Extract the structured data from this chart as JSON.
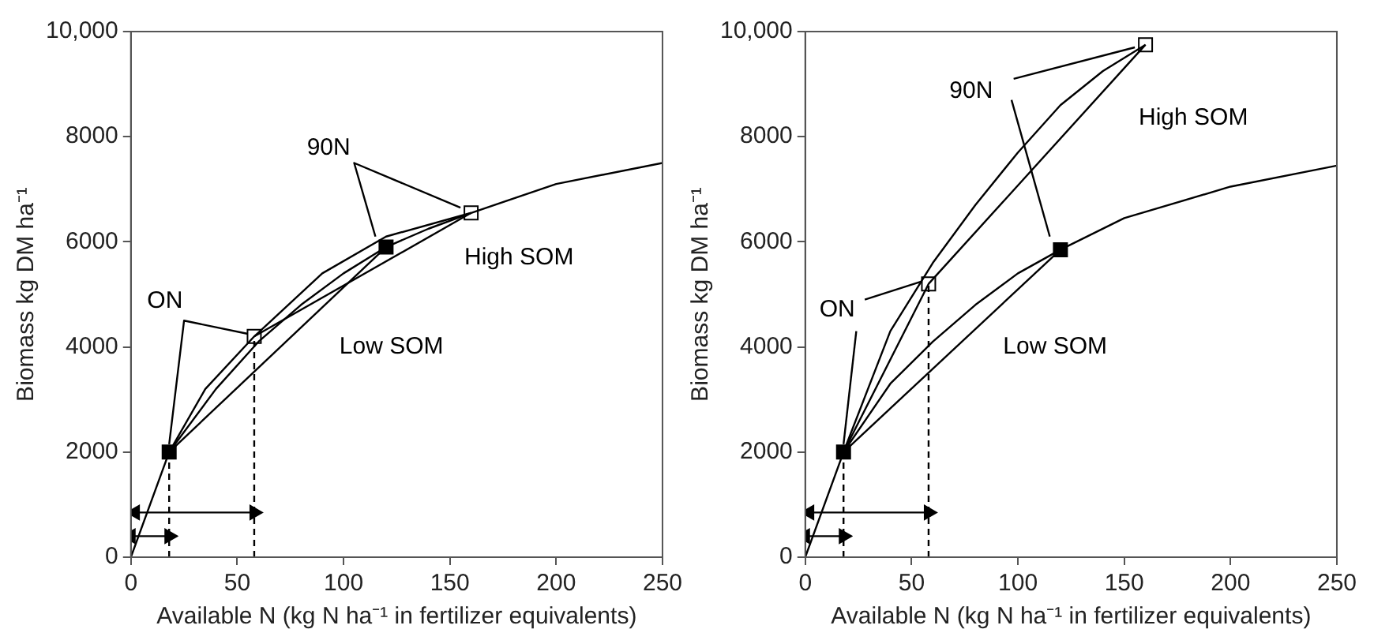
{
  "chart_data": [
    {
      "type": "line",
      "xlabel": "Available N (kg N ha⁻¹ in fertilizer equivalents)",
      "ylabel": "Biomass kg DM ha⁻¹",
      "xlim": [
        0,
        250
      ],
      "xticks": [
        0,
        50,
        100,
        150,
        200,
        250
      ],
      "ylim": [
        0,
        10000
      ],
      "yticks": [
        0,
        2000,
        4000,
        6000,
        8000,
        {
          "value": 10000,
          "label": "10,000"
        }
      ],
      "annotations": [
        {
          "text": "ON",
          "x": 16,
          "y": 4870
        },
        {
          "text": "90N",
          "x": 93,
          "y": 7780
        },
        "High SOM",
        "Low SOM"
      ],
      "series": [
        {
          "color": "#000000",
          "marker": "none",
          "x": [
            0,
            18,
            40,
            60,
            80,
            100,
            120,
            140,
            160,
            200,
            250
          ],
          "values": [
            0,
            2000,
            3200,
            4100,
            4800,
            5400,
            5900,
            6250,
            6550,
            7100,
            7500
          ]
        },
        {
          "color": "#000000",
          "marker": "none",
          "x": [
            18,
            35,
            58,
            90,
            120,
            160
          ],
          "values": [
            2000,
            3200,
            4200,
            5400,
            6100,
            6550
          ]
        },
        {
          "color": "#000000",
          "marker": "none",
          "x": [
            18,
            120
          ],
          "values": [
            2000,
            5900
          ]
        },
        {
          "color": "#000000",
          "marker": "none",
          "x": [
            58,
            160
          ],
          "values": [
            4200,
            6550
          ]
        },
        {
          "color": "#000000",
          "marker": "none",
          "line_style": "dashed",
          "x": [
            18,
            18
          ],
          "values": [
            0,
            2000
          ]
        },
        {
          "color": "#000000",
          "marker": "none",
          "line_style": "dashed",
          "x": [
            58,
            58
          ],
          "values": [
            0,
            4200
          ]
        },
        {
          "color": "#000000",
          "marker": "triangle",
          "x": [
            0,
            18
          ],
          "values": [
            400,
            400
          ]
        },
        {
          "color": "#000000",
          "marker": "triangle",
          "x": [
            2,
            58
          ],
          "values": [
            850,
            850
          ]
        },
        {
          "color": "#000000",
          "marker": "none",
          "x": [
            18,
            25,
            55
          ],
          "values": [
            2150,
            4500,
            4250
          ]
        },
        {
          "color": "#000000",
          "marker": "none",
          "x": [
            115,
            105,
            155
          ],
          "values": [
            6100,
            7500,
            6650
          ]
        },
        {
          "type": "scatter",
          "color": "#000000",
          "marker": "square",
          "x": [
            18,
            120
          ],
          "values": [
            2000,
            5900
          ]
        },
        {
          "type": "scatter",
          "color": "#ffffff",
          "marker": "square",
          "x": [
            58,
            160
          ],
          "values": [
            4200,
            6550
          ]
        }
      ]
    },
    {
      "type": "line",
      "xlabel": "Available N (kg N ha⁻¹ in fertilizer equivalents)",
      "ylabel": "Biomass kg DM ha⁻¹",
      "xlim": [
        0,
        250
      ],
      "xticks": [
        0,
        50,
        100,
        150,
        200,
        250
      ],
      "ylim": [
        0,
        10000
      ],
      "yticks": [
        0,
        2000,
        4000,
        6000,
        8000,
        {
          "value": 10000,
          "label": "10,000"
        }
      ],
      "annotations": [
        {
          "text": "ON",
          "x": 15,
          "y": 4700
        },
        {
          "text": "90N",
          "x": 78,
          "y": 8860
        },
        "High SOM",
        "Low SOM"
      ],
      "series": [
        {
          "color": "#000000",
          "marker": "none",
          "x": [
            0,
            18,
            40,
            60,
            80,
            100,
            120,
            150,
            200,
            250
          ],
          "values": [
            0,
            2000,
            3300,
            4100,
            4800,
            5400,
            5850,
            6450,
            7050,
            7450
          ]
        },
        {
          "color": "#000000",
          "marker": "none",
          "x": [
            18,
            40,
            60,
            80,
            100,
            120,
            140,
            160
          ],
          "values": [
            2000,
            4300,
            5600,
            6700,
            7700,
            8600,
            9250,
            9750
          ]
        },
        {
          "color": "#000000",
          "marker": "none",
          "x": [
            18,
            58,
            160
          ],
          "values": [
            2000,
            5200,
            9750
          ]
        },
        {
          "color": "#000000",
          "marker": "none",
          "x": [
            18,
            120
          ],
          "values": [
            2000,
            5850
          ]
        },
        {
          "color": "#000000",
          "marker": "none",
          "line_style": "dashed",
          "x": [
            18,
            18
          ],
          "values": [
            0,
            2000
          ]
        },
        {
          "color": "#000000",
          "marker": "none",
          "line_style": "dashed",
          "x": [
            58,
            58
          ],
          "values": [
            0,
            5200
          ]
        },
        {
          "color": "#000000",
          "marker": "triangle",
          "x": [
            0,
            18
          ],
          "values": [
            400,
            400
          ]
        },
        {
          "color": "#000000",
          "marker": "triangle",
          "x": [
            2,
            58
          ],
          "values": [
            850,
            850
          ]
        },
        {
          "color": "#000000",
          "marker": "none",
          "x": [
            18,
            24
          ],
          "values": [
            2150,
            4300
          ]
        },
        {
          "color": "#000000",
          "marker": "none",
          "x": [
            28,
            55
          ],
          "values": [
            4900,
            5250
          ]
        },
        {
          "color": "#000000",
          "marker": "none",
          "x": [
            98,
            155
          ],
          "values": [
            9100,
            9700
          ]
        },
        {
          "color": "#000000",
          "marker": "none",
          "x": [
            97,
            115
          ],
          "values": [
            8700,
            6100
          ]
        },
        {
          "type": "scatter",
          "color": "#000000",
          "marker": "square",
          "x": [
            18,
            120
          ],
          "values": [
            2000,
            5850
          ]
        },
        {
          "type": "scatter",
          "color": "#ffffff",
          "marker": "square",
          "x": [
            58,
            160
          ],
          "values": [
            5200,
            9750
          ]
        }
      ]
    }
  ]
}
